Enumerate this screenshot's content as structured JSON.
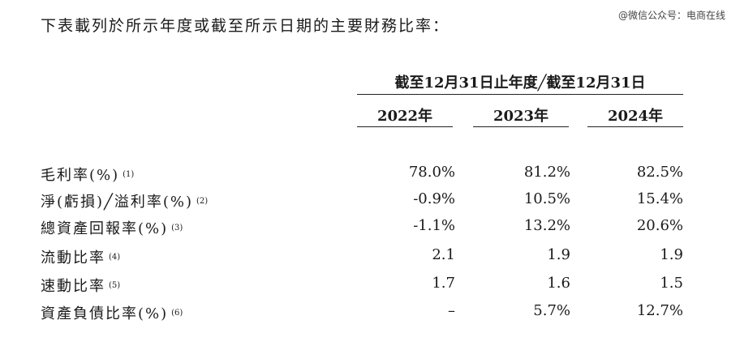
{
  "intro": "下表載列於所示年度或截至所示日期的主要財務比率：",
  "watermark": "@微信公众号：电商在线",
  "table": {
    "span_header": "截至12月31日止年度╱截至12月31日",
    "years": [
      "2022年",
      "2023年",
      "2024年"
    ],
    "rows": [
      {
        "label": "毛利率(%)",
        "note": "(1)",
        "values": [
          "78.0%",
          "81.2%",
          "82.5%"
        ]
      },
      {
        "label": "淨(虧損)╱溢利率(%)",
        "note": "(2)",
        "values": [
          "-0.9%",
          "10.5%",
          "15.4%"
        ]
      },
      {
        "label": "總資產回報率(%)",
        "note": "(3)",
        "values": [
          "-1.1%",
          "13.2%",
          "20.6%"
        ]
      },
      {
        "label": "流動比率",
        "note": "(4)",
        "values": [
          "2.1",
          "1.9",
          "1.9"
        ]
      },
      {
        "label": "速動比率",
        "note": "(5)",
        "values": [
          "1.7",
          "1.6",
          "1.5"
        ]
      },
      {
        "label": "資產負債比率(%)",
        "note": "(6)",
        "values": [
          "–",
          "5.7%",
          "12.7%"
        ]
      }
    ]
  }
}
